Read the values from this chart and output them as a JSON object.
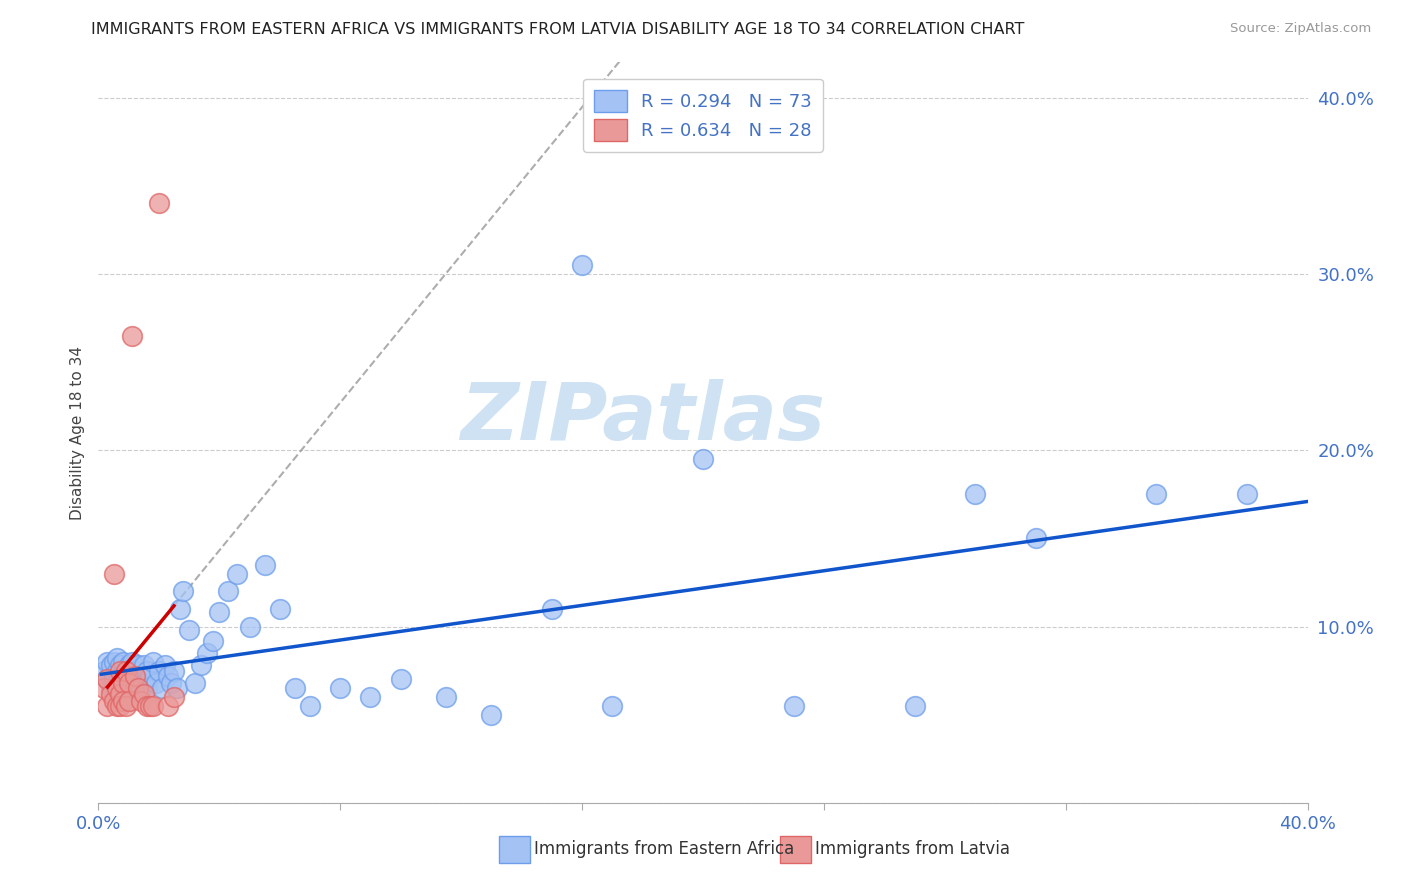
{
  "title": "IMMIGRANTS FROM EASTERN AFRICA VS IMMIGRANTS FROM LATVIA DISABILITY AGE 18 TO 34 CORRELATION CHART",
  "source": "Source: ZipAtlas.com",
  "ylabel": "Disability Age 18 to 34",
  "xlim": [
    0.0,
    0.4
  ],
  "ylim": [
    0.0,
    0.42
  ],
  "R_blue": 0.294,
  "N_blue": 73,
  "R_pink": 0.634,
  "N_pink": 28,
  "blue_color": "#a4c2f4",
  "blue_edge_color": "#6d9eeb",
  "pink_color": "#ea9999",
  "pink_edge_color": "#e06666",
  "blue_line_color": "#1155cc",
  "pink_line_color": "#cc0000",
  "dash_line_color": "#999999",
  "watermark_color": "#cfe2f3",
  "legend_label_blue": "R = 0.294   N = 73",
  "legend_label_pink": "R = 0.634   N = 28",
  "bottom_legend_blue": "Immigrants from Eastern Africa",
  "bottom_legend_pink": "Immigrants from Latvia",
  "text_color": "#4472c4",
  "scatter_blue_x": [
    0.002,
    0.003,
    0.003,
    0.004,
    0.004,
    0.005,
    0.005,
    0.005,
    0.006,
    0.006,
    0.006,
    0.007,
    0.007,
    0.008,
    0.008,
    0.008,
    0.009,
    0.009,
    0.01,
    0.01,
    0.01,
    0.011,
    0.011,
    0.012,
    0.012,
    0.013,
    0.013,
    0.014,
    0.014,
    0.015,
    0.015,
    0.016,
    0.016,
    0.017,
    0.018,
    0.019,
    0.02,
    0.021,
    0.022,
    0.023,
    0.024,
    0.025,
    0.026,
    0.027,
    0.028,
    0.03,
    0.032,
    0.034,
    0.036,
    0.038,
    0.04,
    0.043,
    0.046,
    0.05,
    0.055,
    0.06,
    0.065,
    0.07,
    0.08,
    0.09,
    0.1,
    0.115,
    0.13,
    0.15,
    0.17,
    0.2,
    0.23,
    0.27,
    0.31,
    0.35,
    0.16,
    0.29,
    0.38
  ],
  "scatter_blue_y": [
    0.075,
    0.08,
    0.07,
    0.065,
    0.078,
    0.068,
    0.072,
    0.08,
    0.065,
    0.075,
    0.082,
    0.068,
    0.078,
    0.065,
    0.073,
    0.08,
    0.068,
    0.075,
    0.065,
    0.078,
    0.072,
    0.068,
    0.08,
    0.065,
    0.075,
    0.068,
    0.078,
    0.065,
    0.072,
    0.068,
    0.078,
    0.075,
    0.065,
    0.072,
    0.08,
    0.068,
    0.075,
    0.065,
    0.078,
    0.072,
    0.068,
    0.075,
    0.065,
    0.11,
    0.12,
    0.098,
    0.068,
    0.078,
    0.085,
    0.092,
    0.108,
    0.12,
    0.13,
    0.1,
    0.135,
    0.11,
    0.065,
    0.055,
    0.065,
    0.06,
    0.07,
    0.06,
    0.05,
    0.11,
    0.055,
    0.195,
    0.055,
    0.055,
    0.15,
    0.175,
    0.305,
    0.175,
    0.175
  ],
  "scatter_pink_x": [
    0.002,
    0.003,
    0.003,
    0.004,
    0.005,
    0.005,
    0.006,
    0.006,
    0.007,
    0.007,
    0.007,
    0.008,
    0.008,
    0.009,
    0.009,
    0.01,
    0.01,
    0.011,
    0.012,
    0.013,
    0.014,
    0.015,
    0.016,
    0.017,
    0.018,
    0.02,
    0.023,
    0.025
  ],
  "scatter_pink_y": [
    0.065,
    0.055,
    0.07,
    0.062,
    0.058,
    0.13,
    0.065,
    0.055,
    0.062,
    0.075,
    0.055,
    0.068,
    0.058,
    0.075,
    0.055,
    0.068,
    0.058,
    0.265,
    0.072,
    0.065,
    0.058,
    0.062,
    0.055,
    0.055,
    0.055,
    0.34,
    0.055,
    0.06
  ],
  "pink_trend_x_start": 0.003,
  "pink_trend_x_solid_end": 0.025,
  "pink_trend_x_dash_end": 0.22,
  "blue_trend_x_start": 0.001,
  "blue_trend_x_end": 0.4
}
